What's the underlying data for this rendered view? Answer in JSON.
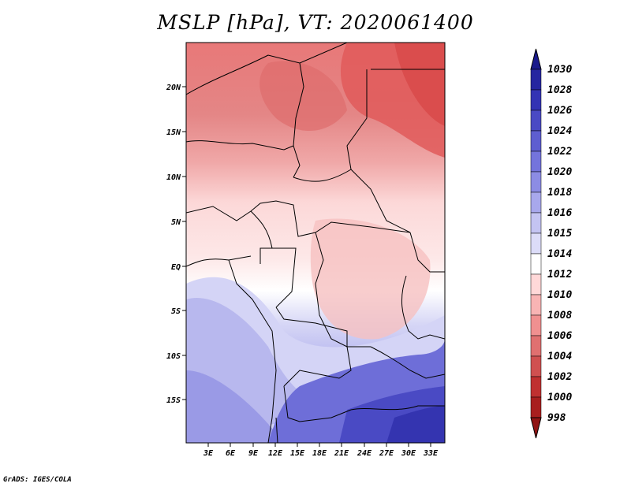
{
  "title": "MSLP [hPa], VT: 2020061400",
  "credit": "GrADS: IGES/COLA",
  "lat_labels": [
    "20N",
    "15N",
    "10N",
    "5N",
    "EQ",
    "5S",
    "10S",
    "15S"
  ],
  "lon_labels": [
    "3E",
    "6E",
    "9E",
    "12E",
    "15E",
    "18E",
    "21E",
    "24E",
    "27E",
    "30E",
    "33E"
  ],
  "colorbar": {
    "levels": [
      "1030",
      "1028",
      "1026",
      "1024",
      "1022",
      "1020",
      "1018",
      "1016",
      "1015",
      "1014",
      "1012",
      "1010",
      "1008",
      "1006",
      "1004",
      "1002",
      "1000",
      "998"
    ],
    "colors": [
      "#1a1a8c",
      "#2626a0",
      "#3333b4",
      "#4a4ac4",
      "#5e5ed0",
      "#7474dc",
      "#8c8ce4",
      "#a8a8ec",
      "#c4c4f2",
      "#dcdcf8",
      "#ffffff",
      "#ffd8d8",
      "#f8b4b4",
      "#f09090",
      "#e07070",
      "#d05050",
      "#c03030",
      "#a81e1e",
      "#901414"
    ]
  }
}
